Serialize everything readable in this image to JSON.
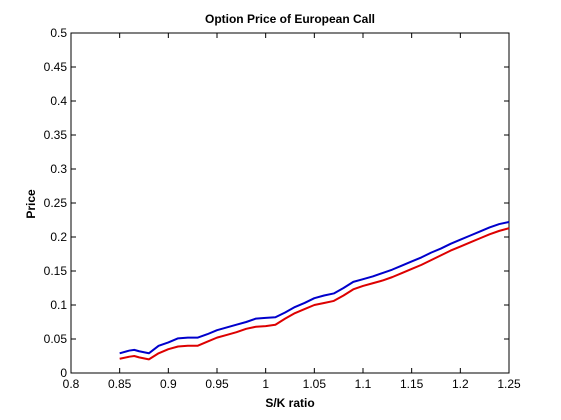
{
  "chart_data": {
    "type": "line",
    "title": "Option Price of European Call",
    "xlabel": "S/K ratio",
    "ylabel": "Price",
    "xlim": [
      0.8,
      1.25
    ],
    "ylim": [
      0,
      0.5
    ],
    "xticks": [
      0.8,
      0.85,
      0.9,
      0.95,
      1,
      1.05,
      1.1,
      1.15,
      1.2,
      1.25
    ],
    "xtick_labels": [
      "0.8",
      "0.85",
      "0.9",
      "0.95",
      "1",
      "1.05",
      "1.1",
      "1.15",
      "1.2",
      "1.25"
    ],
    "yticks": [
      0,
      0.05,
      0.1,
      0.15,
      0.2,
      0.25,
      0.3,
      0.35,
      0.4,
      0.45,
      0.5
    ],
    "ytick_labels": [
      "0",
      "0.05",
      "0.1",
      "0.15",
      "0.2",
      "0.25",
      "0.3",
      "0.35",
      "0.4",
      "0.45",
      "0.5"
    ],
    "grid": false,
    "series": [
      {
        "color": "#0000cc",
        "x": [
          0.85,
          0.86,
          0.865,
          0.87,
          0.88,
          0.89,
          0.9,
          0.91,
          0.92,
          0.93,
          0.94,
          0.95,
          0.96,
          0.97,
          0.98,
          0.99,
          1.0,
          1.01,
          1.02,
          1.03,
          1.04,
          1.05,
          1.06,
          1.07,
          1.08,
          1.09,
          1.1,
          1.11,
          1.12,
          1.13,
          1.14,
          1.15,
          1.16,
          1.17,
          1.18,
          1.19,
          1.2,
          1.21,
          1.22,
          1.23,
          1.24,
          1.25
        ],
        "y": [
          0.029,
          0.033,
          0.034,
          0.032,
          0.029,
          0.04,
          0.045,
          0.051,
          0.052,
          0.052,
          0.057,
          0.063,
          0.067,
          0.071,
          0.075,
          0.08,
          0.081,
          0.082,
          0.089,
          0.097,
          0.103,
          0.11,
          0.114,
          0.117,
          0.125,
          0.134,
          0.138,
          0.142,
          0.147,
          0.152,
          0.158,
          0.164,
          0.17,
          0.177,
          0.183,
          0.19,
          0.196,
          0.202,
          0.208,
          0.214,
          0.219,
          0.222
        ]
      },
      {
        "color": "#dd0000",
        "x": [
          0.85,
          0.86,
          0.865,
          0.87,
          0.88,
          0.89,
          0.9,
          0.91,
          0.92,
          0.93,
          0.94,
          0.95,
          0.96,
          0.97,
          0.98,
          0.99,
          1.0,
          1.01,
          1.02,
          1.03,
          1.04,
          1.05,
          1.06,
          1.07,
          1.08,
          1.09,
          1.1,
          1.11,
          1.12,
          1.13,
          1.14,
          1.15,
          1.16,
          1.17,
          1.18,
          1.19,
          1.2,
          1.21,
          1.22,
          1.23,
          1.24,
          1.25
        ],
        "y": [
          0.021,
          0.024,
          0.025,
          0.023,
          0.02,
          0.029,
          0.035,
          0.039,
          0.04,
          0.04,
          0.046,
          0.052,
          0.056,
          0.06,
          0.065,
          0.068,
          0.069,
          0.071,
          0.08,
          0.088,
          0.094,
          0.1,
          0.103,
          0.106,
          0.114,
          0.123,
          0.128,
          0.132,
          0.136,
          0.141,
          0.147,
          0.153,
          0.159,
          0.166,
          0.173,
          0.18,
          0.186,
          0.192,
          0.198,
          0.204,
          0.209,
          0.213
        ]
      }
    ]
  }
}
